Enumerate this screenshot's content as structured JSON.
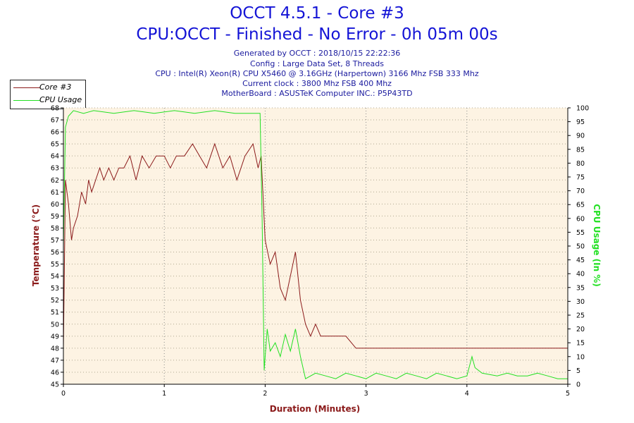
{
  "header": {
    "title": "OCCT 4.5.1 - Core #3",
    "subtitle": "CPU:OCCT - Finished - No Error - 0h 05m 00s",
    "info": [
      "Generated by OCCT : 2018/10/15 22:22:36",
      "Config : Large Data Set, 8 Threads",
      "CPU : Intel(R) Xeon(R) CPU X5460 @ 3.16GHz (Harpertown) 3166 Mhz FSB 333 Mhz",
      "Current clock : 3800 Mhz FSB 400 Mhz",
      "MotherBoard : ASUSTeK Computer INC.: P5P43TD"
    ]
  },
  "colors": {
    "temperature": "#8b1a1a",
    "cpu_usage": "#22e022",
    "plot_bg": "#fdf3e3",
    "title": "#1313d6"
  },
  "chart_data": {
    "type": "line",
    "xlabel": "Duration (Minutes)",
    "ylabel_left": "Temperature (°C)",
    "ylabel_right": "CPU Usage (In %)",
    "xlim": [
      0,
      5
    ],
    "ylim_left": [
      45,
      68
    ],
    "ylim_right": [
      0,
      100
    ],
    "x_ticks": [
      "0",
      "1",
      "2",
      "3",
      "4",
      "5"
    ],
    "y_left_ticks": [
      "45",
      "46",
      "47",
      "48",
      "49",
      "50",
      "51",
      "52",
      "53",
      "54",
      "55",
      "56",
      "57",
      "58",
      "59",
      "60",
      "61",
      "62",
      "63",
      "64",
      "65",
      "66",
      "67",
      "68"
    ],
    "y_right_ticks": [
      "0",
      "5",
      "10",
      "15",
      "20",
      "25",
      "30",
      "35",
      "40",
      "45",
      "50",
      "55",
      "60",
      "65",
      "70",
      "75",
      "80",
      "85",
      "90",
      "95",
      "100"
    ],
    "legend_position": "top-left",
    "grid": true,
    "series": [
      {
        "name": "Core #3",
        "axis": "left",
        "points": [
          [
            0,
            48
          ],
          [
            0.02,
            62
          ],
          [
            0.05,
            60
          ],
          [
            0.08,
            57
          ],
          [
            0.1,
            58
          ],
          [
            0.14,
            59
          ],
          [
            0.18,
            61
          ],
          [
            0.22,
            60
          ],
          [
            0.25,
            62
          ],
          [
            0.28,
            61
          ],
          [
            0.32,
            62
          ],
          [
            0.36,
            63
          ],
          [
            0.4,
            62
          ],
          [
            0.45,
            63
          ],
          [
            0.5,
            62
          ],
          [
            0.55,
            63
          ],
          [
            0.6,
            63
          ],
          [
            0.66,
            64
          ],
          [
            0.72,
            62
          ],
          [
            0.78,
            64
          ],
          [
            0.85,
            63
          ],
          [
            0.92,
            64
          ],
          [
            1.0,
            64
          ],
          [
            1.06,
            63
          ],
          [
            1.12,
            64
          ],
          [
            1.2,
            64
          ],
          [
            1.28,
            65
          ],
          [
            1.35,
            64
          ],
          [
            1.42,
            63
          ],
          [
            1.5,
            65
          ],
          [
            1.58,
            63
          ],
          [
            1.65,
            64
          ],
          [
            1.72,
            62
          ],
          [
            1.8,
            64
          ],
          [
            1.88,
            65
          ],
          [
            1.93,
            63
          ],
          [
            1.96,
            64
          ],
          [
            2.0,
            57
          ],
          [
            2.05,
            55
          ],
          [
            2.1,
            56
          ],
          [
            2.15,
            53
          ],
          [
            2.2,
            52
          ],
          [
            2.25,
            54
          ],
          [
            2.3,
            56
          ],
          [
            2.35,
            52
          ],
          [
            2.4,
            50
          ],
          [
            2.45,
            49
          ],
          [
            2.5,
            50
          ],
          [
            2.55,
            49
          ],
          [
            2.62,
            49
          ],
          [
            2.7,
            49
          ],
          [
            2.8,
            49
          ],
          [
            2.9,
            48
          ],
          [
            3.0,
            48
          ],
          [
            3.1,
            48
          ],
          [
            3.2,
            48
          ],
          [
            3.3,
            48
          ],
          [
            3.4,
            48
          ],
          [
            3.5,
            48
          ],
          [
            3.6,
            48
          ],
          [
            3.7,
            48
          ],
          [
            3.8,
            48
          ],
          [
            3.9,
            48
          ],
          [
            4.0,
            48
          ],
          [
            4.05,
            48
          ],
          [
            4.1,
            48
          ],
          [
            4.2,
            48
          ],
          [
            4.3,
            48
          ],
          [
            4.4,
            48
          ],
          [
            4.5,
            48
          ],
          [
            4.6,
            48
          ],
          [
            4.7,
            48
          ],
          [
            4.8,
            48
          ],
          [
            4.9,
            48
          ],
          [
            5.0,
            48
          ]
        ]
      },
      {
        "name": "CPU Usage",
        "axis": "right",
        "points": [
          [
            0,
            50
          ],
          [
            0.02,
            93
          ],
          [
            0.05,
            97
          ],
          [
            0.1,
            99
          ],
          [
            0.2,
            98
          ],
          [
            0.3,
            99
          ],
          [
            0.5,
            98
          ],
          [
            0.7,
            99
          ],
          [
            0.9,
            98
          ],
          [
            1.1,
            99
          ],
          [
            1.3,
            98
          ],
          [
            1.5,
            99
          ],
          [
            1.7,
            98
          ],
          [
            1.85,
            98
          ],
          [
            1.95,
            98
          ],
          [
            1.97,
            60
          ],
          [
            1.99,
            5
          ],
          [
            2.02,
            20
          ],
          [
            2.05,
            12
          ],
          [
            2.1,
            15
          ],
          [
            2.15,
            10
          ],
          [
            2.2,
            18
          ],
          [
            2.25,
            12
          ],
          [
            2.3,
            20
          ],
          [
            2.35,
            10
          ],
          [
            2.4,
            2
          ],
          [
            2.5,
            4
          ],
          [
            2.6,
            3
          ],
          [
            2.7,
            2
          ],
          [
            2.8,
            4
          ],
          [
            2.9,
            3
          ],
          [
            3.0,
            2
          ],
          [
            3.1,
            4
          ],
          [
            3.2,
            3
          ],
          [
            3.3,
            2
          ],
          [
            3.4,
            4
          ],
          [
            3.5,
            3
          ],
          [
            3.6,
            2
          ],
          [
            3.7,
            4
          ],
          [
            3.8,
            3
          ],
          [
            3.9,
            2
          ],
          [
            4.0,
            3
          ],
          [
            4.05,
            10
          ],
          [
            4.08,
            6
          ],
          [
            4.15,
            4
          ],
          [
            4.3,
            3
          ],
          [
            4.4,
            4
          ],
          [
            4.5,
            3
          ],
          [
            4.6,
            3
          ],
          [
            4.7,
            4
          ],
          [
            4.8,
            3
          ],
          [
            4.9,
            2
          ],
          [
            5.0,
            2
          ]
        ]
      }
    ]
  }
}
